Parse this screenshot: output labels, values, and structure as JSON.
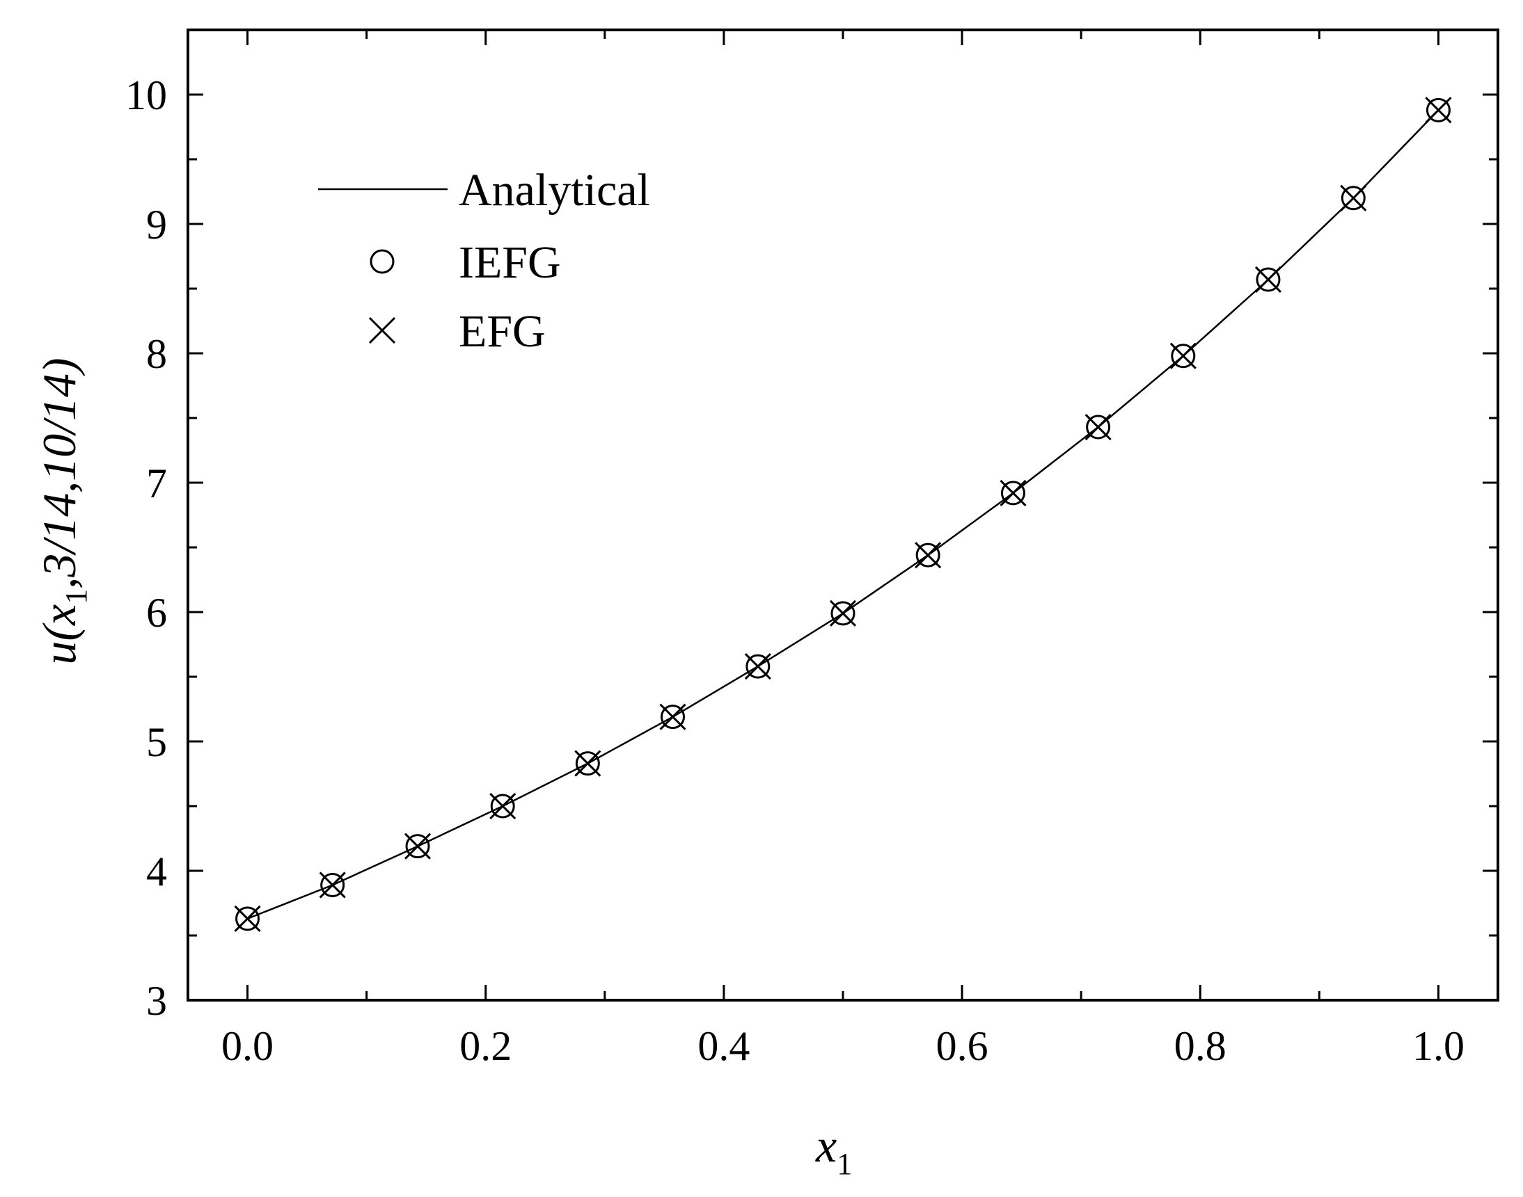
{
  "chart_data": {
    "type": "line",
    "xlabel": {
      "main": "x",
      "sub": "1"
    },
    "ylabel": {
      "main": "u(x",
      "sub": "1",
      "rest": ",3/14,10/14)"
    },
    "xlim": [
      -0.05,
      1.05
    ],
    "ylim": [
      3,
      10.5
    ],
    "xticks": [
      0.0,
      0.2,
      0.4,
      0.6,
      0.8,
      1.0
    ],
    "xtick_labels": [
      "0.0",
      "0.2",
      "0.4",
      "0.6",
      "0.8",
      "1.0"
    ],
    "xminor": [
      0.1,
      0.3,
      0.5,
      0.7,
      0.9
    ],
    "yticks": [
      3,
      4,
      5,
      6,
      7,
      8,
      9,
      10
    ],
    "ytick_labels": [
      "3",
      "4",
      "5",
      "6",
      "7",
      "8",
      "9",
      "10"
    ],
    "yminor": [
      3.5,
      4.5,
      5.5,
      6.5,
      7.5,
      8.5,
      9.5
    ],
    "grid": false,
    "legend_position": "top-left",
    "x": [
      0.0,
      0.0714,
      0.1429,
      0.2143,
      0.2857,
      0.3571,
      0.4286,
      0.5,
      0.5714,
      0.6429,
      0.7143,
      0.7857,
      0.8571,
      0.9286,
      1.0
    ],
    "series": [
      {
        "name": "Analytical",
        "style": "line",
        "values": [
          3.63,
          3.89,
          4.19,
          4.5,
          4.83,
          5.19,
          5.58,
          5.99,
          6.44,
          6.92,
          7.43,
          7.98,
          8.57,
          9.2,
          9.88
        ]
      },
      {
        "name": "IEFG",
        "style": "circle",
        "values": [
          3.63,
          3.89,
          4.19,
          4.5,
          4.83,
          5.19,
          5.58,
          5.99,
          6.44,
          6.92,
          7.43,
          7.98,
          8.57,
          9.2,
          9.88
        ]
      },
      {
        "name": "EFG",
        "style": "cross",
        "values": [
          3.63,
          3.89,
          4.19,
          4.5,
          4.83,
          5.19,
          5.58,
          5.99,
          6.44,
          6.92,
          7.43,
          7.98,
          8.57,
          9.2,
          9.88
        ]
      }
    ]
  }
}
